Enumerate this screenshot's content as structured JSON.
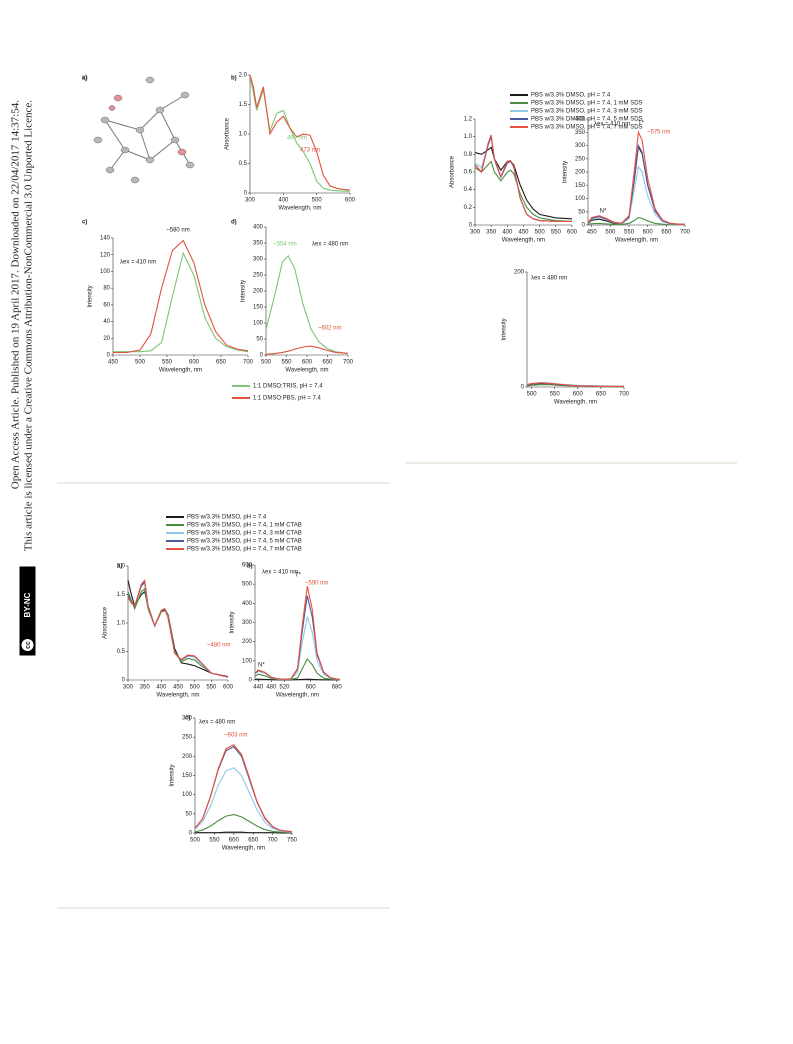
{
  "sidebar": {
    "line1": "Open Access Article. Published on 19 April 2017. Downloaded on 22/04/2017 14:37:54.",
    "line2": "This article is licensed under a Creative Commons Attribution-NonCommercial 3.0 Unported Licence.",
    "badge_cc": "cc",
    "badge": "BY-NC"
  },
  "structure_panel": {
    "label": "a)"
  },
  "chart_data": [
    {
      "type": "line",
      "panel": "b)",
      "xlabel": "Wavelength, nm",
      "ylabel": "Absorbance",
      "xlim": [
        300,
        600
      ],
      "ylim": [
        0,
        2
      ],
      "xticks": [
        300,
        400,
        500,
        600
      ],
      "yticks": [
        0,
        0.5,
        {
          "value": 1,
          "label": "1.0"
        },
        1.5,
        {
          "value": 2,
          "label": "2.0"
        }
      ],
      "x": [
        300,
        310,
        320,
        340,
        360,
        380,
        400,
        420,
        440,
        460,
        480,
        500,
        520,
        540,
        560,
        580,
        600
      ],
      "series": [
        {
          "color": "#7cc576",
          "values": [
            2.0,
            1.7,
            1.4,
            1.75,
            1.05,
            1.35,
            1.4,
            1.1,
            0.85,
            0.7,
            0.5,
            0.2,
            0.08,
            0.05,
            0.04,
            0.03,
            0.03
          ]
        },
        {
          "color": "#e0523a",
          "values": [
            2.0,
            1.8,
            1.45,
            1.8,
            1.0,
            1.2,
            1.3,
            1.1,
            0.95,
            1.0,
            0.98,
            0.7,
            0.3,
            0.12,
            0.08,
            0.06,
            0.05
          ]
        }
      ],
      "annotations": [
        "467 nm",
        "473 nm"
      ]
    },
    {
      "type": "line",
      "panel": "c)",
      "xlabel": "Wavelength, nm",
      "ylabel": "Intensity",
      "xlim": [
        450,
        700
      ],
      "ylim": [
        0,
        140
      ],
      "xticks": [
        450,
        500,
        550,
        600,
        650,
        700
      ],
      "yticks": [
        0,
        20,
        40,
        60,
        80,
        100,
        120,
        140
      ],
      "x": [
        450,
        475,
        500,
        520,
        540,
        560,
        580,
        600,
        620,
        640,
        660,
        680,
        700
      ],
      "series": [
        {
          "color": "#7cc576",
          "values": [
            4,
            4,
            4,
            5,
            15,
            70,
            122,
            95,
            45,
            20,
            10,
            6,
            4
          ]
        },
        {
          "color": "#e0523a",
          "values": [
            3,
            3,
            6,
            25,
            80,
            125,
            137,
            110,
            60,
            28,
            12,
            7,
            5
          ]
        }
      ],
      "annotations": [
        "~580 nm",
        "λex = 410 nm"
      ]
    },
    {
      "type": "line",
      "panel": "d)",
      "xlabel": "Wavelength, nm",
      "ylabel": "Intensity",
      "xlim": [
        500,
        700
      ],
      "ylim": [
        0,
        400
      ],
      "xticks": [
        500,
        550,
        600,
        650,
        700
      ],
      "yticks": [
        0,
        50,
        100,
        150,
        200,
        250,
        300,
        350,
        400
      ],
      "x": [
        500,
        520,
        540,
        554,
        570,
        590,
        610,
        630,
        650,
        670,
        700
      ],
      "series": [
        {
          "name": "1:1 DMSO:TRIS, pH = 7.4",
          "color": "#7cc576",
          "values": [
            80,
            180,
            290,
            310,
            270,
            160,
            80,
            40,
            20,
            10,
            5
          ]
        },
        {
          "name": "1:1 DMSO:PBS, pH = 7.4",
          "color": "#e0523a",
          "values": [
            2,
            4,
            8,
            12,
            18,
            25,
            28,
            22,
            14,
            8,
            5
          ]
        }
      ],
      "annotations": [
        "~554 nm",
        "λex = 480 nm",
        "~602 nm"
      ]
    },
    {
      "type": "line",
      "xlabel": "Wavelength, nm",
      "ylabel": "Absorbance",
      "xlim": [
        300,
        600
      ],
      "ylim": [
        0,
        1.2
      ],
      "xticks": [
        300,
        350,
        400,
        450,
        500,
        550,
        600
      ],
      "yticks": [
        0,
        0.2,
        0.4,
        0.6,
        0.8,
        {
          "value": 1,
          "label": "1.0"
        },
        1.2
      ],
      "x": [
        300,
        320,
        340,
        350,
        360,
        380,
        400,
        410,
        420,
        440,
        460,
        480,
        500,
        550,
        600
      ],
      "series": [
        {
          "name": "PBS w/3.3% DMSO, pH = 7.4",
          "color": "#1a1a1a",
          "values": [
            0.82,
            0.8,
            0.85,
            0.88,
            0.75,
            0.62,
            0.72,
            0.72,
            0.68,
            0.45,
            0.28,
            0.18,
            0.12,
            0.08,
            0.07
          ]
        },
        {
          "name": "PBS w/3.3% DMSO, pH = 7.4, 1 mM SDS",
          "color": "#4a8c3f",
          "values": [
            0.65,
            0.6,
            0.68,
            0.72,
            0.6,
            0.5,
            0.6,
            0.62,
            0.58,
            0.35,
            0.2,
            0.12,
            0.08,
            0.05,
            0.04
          ]
        },
        {
          "name": "PBS w/3.3% DMSO, pH = 7.4, 3 mM SDS",
          "color": "#8fc8e8",
          "values": [
            0.7,
            0.65,
            0.9,
            1.0,
            0.75,
            0.55,
            0.7,
            0.72,
            0.65,
            0.3,
            0.12,
            0.07,
            0.05,
            0.04,
            0.04
          ]
        },
        {
          "name": "PBS w/3.3% DMSO, pH = 7.4, 5 mM SDS",
          "color": "#4b5b9e",
          "values": [
            0.68,
            0.6,
            0.9,
            1.0,
            0.74,
            0.54,
            0.7,
            0.72,
            0.66,
            0.3,
            0.12,
            0.07,
            0.05,
            0.04,
            0.04
          ]
        },
        {
          "name": "PBS w/3.3% DMSO, pH = 7.4, 7 mM SDS",
          "color": "#e8513f",
          "values": [
            0.68,
            0.6,
            0.92,
            1.02,
            0.75,
            0.55,
            0.72,
            0.73,
            0.66,
            0.3,
            0.12,
            0.07,
            0.05,
            0.04,
            0.04
          ]
        }
      ],
      "annotations": []
    },
    {
      "type": "line",
      "xlabel": "Wavelength, nm",
      "ylabel": "Intensity",
      "xlim": [
        440,
        700
      ],
      "ylim": [
        0,
        400
      ],
      "xticks": [
        450,
        500,
        550,
        600,
        650,
        700
      ],
      "yticks": [
        0,
        50,
        100,
        150,
        200,
        250,
        300,
        350,
        400
      ],
      "x": [
        440,
        450,
        470,
        490,
        510,
        530,
        550,
        565,
        575,
        585,
        600,
        620,
        640,
        660,
        680,
        700
      ],
      "series": [
        {
          "color": "#1a1a1a",
          "values": [
            5,
            18,
            22,
            15,
            6,
            4,
            30,
            180,
            295,
            270,
            150,
            55,
            18,
            6,
            3,
            2
          ]
        },
        {
          "color": "#4a8c3f",
          "values": [
            2,
            5,
            6,
            4,
            2,
            2,
            6,
            18,
            28,
            25,
            15,
            6,
            3,
            1,
            1,
            1
          ]
        },
        {
          "color": "#8fc8e8",
          "values": [
            6,
            22,
            28,
            20,
            8,
            5,
            25,
            140,
            220,
            200,
            110,
            40,
            12,
            5,
            2,
            1
          ]
        },
        {
          "color": "#4b5b9e",
          "values": [
            8,
            25,
            32,
            22,
            9,
            6,
            30,
            185,
            300,
            275,
            150,
            52,
            16,
            6,
            3,
            2
          ]
        },
        {
          "color": "#e8513f",
          "values": [
            9,
            28,
            35,
            24,
            10,
            7,
            35,
            215,
            350,
            320,
            175,
            60,
            18,
            7,
            3,
            2
          ]
        }
      ],
      "annotations": [
        "λex = 410 nm",
        "T*",
        "~575 nm",
        "N*"
      ]
    },
    {
      "type": "line",
      "xlabel": "Wavelength, nm",
      "ylabel": "Intensity",
      "xlim": [
        490,
        700
      ],
      "ylim": [
        0,
        200
      ],
      "xticks": [
        500,
        550,
        600,
        650,
        700
      ],
      "yticks": [
        0,
        200
      ],
      "x": [
        490,
        500,
        520,
        540,
        560,
        580,
        600,
        650,
        700
      ],
      "series": [
        {
          "color": "#1a1a1a",
          "values": [
            3,
            5,
            6,
            5,
            4,
            3,
            2,
            1,
            1
          ]
        },
        {
          "color": "#4a8c3f",
          "values": [
            2,
            3,
            4,
            4,
            3,
            2,
            2,
            1,
            0
          ]
        },
        {
          "color": "#8fc8e8",
          "values": [
            4,
            6,
            8,
            7,
            5,
            4,
            3,
            2,
            1
          ]
        },
        {
          "color": "#4b5b9e",
          "values": [
            3,
            5,
            7,
            6,
            4,
            3,
            2,
            1,
            1
          ]
        },
        {
          "color": "#e8513f",
          "values": [
            4,
            6,
            7,
            6,
            5,
            3,
            2,
            1,
            1
          ]
        }
      ],
      "annotations": [
        "λex = 480 nm"
      ]
    },
    {
      "type": "line",
      "panel": "a)",
      "xlabel": "Wavelength, nm",
      "ylabel": "Absorbance",
      "xlim": [
        300,
        600
      ],
      "ylim": [
        0,
        2
      ],
      "xticks": [
        300,
        350,
        400,
        450,
        500,
        550,
        600
      ],
      "yticks": [
        0,
        0.5,
        {
          "value": 1,
          "label": "1.0"
        },
        1.5,
        {
          "value": 2,
          "label": "2.0"
        }
      ],
      "x": [
        300,
        310,
        320,
        340,
        350,
        360,
        380,
        400,
        410,
        420,
        440,
        460,
        480,
        500,
        520,
        550,
        600
      ],
      "series": [
        {
          "name": "PBS w/3.3% DMSO, pH = 7.4",
          "color": "#1a1a1a",
          "values": [
            1.75,
            1.5,
            1.3,
            1.5,
            1.55,
            1.3,
            0.95,
            1.2,
            1.22,
            1.15,
            0.55,
            0.3,
            0.28,
            0.25,
            0.2,
            0.12,
            0.06
          ]
        },
        {
          "name": "PBS w/3.3% DMSO, pH = 7.4, 1 mM CTAB",
          "color": "#4a8c3f",
          "values": [
            1.55,
            1.4,
            1.25,
            1.55,
            1.6,
            1.25,
            0.95,
            1.2,
            1.25,
            1.15,
            0.5,
            0.32,
            0.38,
            0.35,
            0.25,
            0.12,
            0.05
          ]
        },
        {
          "name": "PBS w/3.3% DMSO, pH = 7.4, 3 mM CTAB",
          "color": "#8fc8e8",
          "values": [
            1.5,
            1.35,
            1.3,
            1.65,
            1.7,
            1.3,
            0.95,
            1.22,
            1.25,
            1.1,
            0.48,
            0.35,
            0.42,
            0.4,
            0.28,
            0.12,
            0.05
          ]
        },
        {
          "name": "PBS w/3.3% DMSO, pH = 7.4, 5 mM CTAB",
          "color": "#4b5b9e",
          "values": [
            1.5,
            1.35,
            1.3,
            1.65,
            1.72,
            1.3,
            0.95,
            1.22,
            1.25,
            1.1,
            0.47,
            0.35,
            0.43,
            0.42,
            0.3,
            0.12,
            0.05
          ]
        },
        {
          "name": "PBS w/3.3% DMSO, pH = 7.4, 7 mM CTAB",
          "color": "#e8513f",
          "values": [
            1.45,
            1.35,
            1.3,
            1.68,
            1.75,
            1.3,
            0.95,
            1.22,
            1.25,
            1.1,
            0.47,
            0.36,
            0.44,
            0.42,
            0.3,
            0.12,
            0.05
          ]
        }
      ],
      "annotations": [
        "~480 nm"
      ]
    },
    {
      "type": "line",
      "panel": "b)",
      "xlabel": "Wavelength, nm",
      "ylabel": "Intensity",
      "xlim": [
        430,
        690
      ],
      "ylim": [
        0,
        600
      ],
      "xticks": [
        440,
        480,
        520,
        600,
        680
      ],
      "yticks": [
        0,
        100,
        200,
        300,
        400,
        500,
        600
      ],
      "x": [
        430,
        440,
        460,
        480,
        500,
        520,
        540,
        560,
        575,
        590,
        605,
        620,
        640,
        660,
        680,
        690
      ],
      "series": [
        {
          "color": "#1a1a1a",
          "values": [
            3,
            4,
            3,
            2,
            1,
            1,
            1,
            2,
            3,
            4,
            3,
            2,
            1,
            1,
            1,
            1
          ]
        },
        {
          "color": "#4a8c3f",
          "values": [
            20,
            30,
            22,
            8,
            3,
            2,
            3,
            10,
            60,
            110,
            80,
            35,
            10,
            4,
            2,
            1
          ]
        },
        {
          "color": "#8fc8e8",
          "values": [
            30,
            45,
            35,
            12,
            5,
            3,
            5,
            40,
            200,
            330,
            250,
            100,
            30,
            10,
            4,
            2
          ]
        },
        {
          "color": "#4b5b9e",
          "values": [
            35,
            50,
            40,
            14,
            6,
            4,
            6,
            55,
            260,
            440,
            330,
            130,
            40,
            12,
            5,
            3
          ]
        },
        {
          "color": "#e8513f",
          "values": [
            35,
            52,
            40,
            14,
            6,
            4,
            6,
            60,
            290,
            490,
            370,
            140,
            42,
            13,
            5,
            3
          ]
        }
      ],
      "annotations": [
        "λex = 410 nm",
        "T*",
        "~590 nm",
        "N*"
      ]
    },
    {
      "type": "line",
      "panel": "c)",
      "xlabel": "Wavelength, nm",
      "ylabel": "Intensity",
      "xlim": [
        500,
        750
      ],
      "ylim": [
        0,
        300
      ],
      "xticks": [
        500,
        550,
        600,
        650,
        700,
        750
      ],
      "yticks": [
        0,
        50,
        100,
        150,
        200,
        250,
        300
      ],
      "x": [
        500,
        520,
        540,
        560,
        580,
        600,
        620,
        640,
        660,
        680,
        700,
        720,
        750
      ],
      "series": [
        {
          "color": "#1a1a1a",
          "values": [
            1,
            1,
            1,
            1,
            2,
            2,
            2,
            1,
            1,
            1,
            1,
            0,
            0
          ]
        },
        {
          "color": "#4a8c3f",
          "values": [
            3,
            8,
            18,
            32,
            44,
            48,
            42,
            30,
            18,
            9,
            4,
            2,
            1
          ]
        },
        {
          "color": "#8fc8e8",
          "values": [
            10,
            30,
            70,
            125,
            162,
            170,
            150,
            105,
            60,
            28,
            12,
            5,
            2
          ]
        },
        {
          "color": "#4b5b9e",
          "values": [
            12,
            38,
            95,
            165,
            215,
            225,
            200,
            140,
            80,
            38,
            16,
            7,
            3
          ]
        },
        {
          "color": "#e8513f",
          "values": [
            12,
            38,
            96,
            168,
            220,
            230,
            205,
            145,
            82,
            40,
            17,
            7,
            3
          ]
        }
      ],
      "annotations": [
        "λex = 480 nm",
        "~603 nm"
      ]
    }
  ]
}
